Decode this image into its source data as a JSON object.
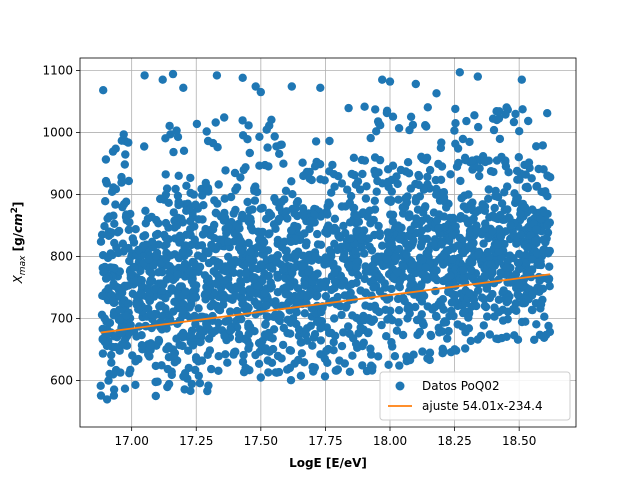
{
  "chart_data": {
    "type": "scatter",
    "title": "",
    "xlabel": "LogE [E/eV]",
    "ylabel": "X_max [g/cm^2]",
    "ylabel_parts": {
      "base": "X",
      "sub": "max",
      "unit_pre": " [g/",
      "unit_italic": "cm",
      "unit_sup": "2",
      "unit_post": "]"
    },
    "xlim": [
      16.8,
      18.72
    ],
    "ylim": [
      525,
      1120
    ],
    "xticks": [
      17.0,
      17.25,
      17.5,
      17.75,
      18.0,
      18.25,
      18.5
    ],
    "xtick_labels": [
      "17.00",
      "17.25",
      "17.50",
      "17.75",
      "18.00",
      "18.25",
      "18.50"
    ],
    "yticks": [
      600,
      700,
      800,
      900,
      1000,
      1100
    ],
    "ytick_labels": [
      "600",
      "700",
      "800",
      "900",
      "1000",
      "1100"
    ],
    "grid": true,
    "legend_position": "lower-right",
    "series": [
      {
        "name": "Datos PoQ02",
        "kind": "scatter",
        "color": "#1f77b4",
        "x_range": [
          16.88,
          18.62
        ],
        "y_band_low": [
          [
            16.88,
            555
          ],
          [
            17.5,
            580
          ],
          [
            18.0,
            610
          ],
          [
            18.62,
            660
          ]
        ],
        "y_band_high": [
          [
            16.88,
            935
          ],
          [
            17.5,
            960
          ],
          [
            18.0,
            975
          ],
          [
            18.62,
            970
          ]
        ],
        "outliers": [
          [
            16.89,
            1068
          ],
          [
            17.05,
            1092
          ],
          [
            17.16,
            1094
          ],
          [
            17.12,
            1085
          ],
          [
            17.33,
            1092
          ],
          [
            17.43,
            1088
          ],
          [
            17.48,
            1074
          ],
          [
            17.62,
            1074
          ],
          [
            17.73,
            1072
          ],
          [
            17.97,
            1085
          ],
          [
            18.0,
            1082
          ],
          [
            18.1,
            1078
          ],
          [
            18.18,
            1063
          ],
          [
            18.27,
            1097
          ],
          [
            18.34,
            1090
          ],
          [
            18.51,
            1085
          ],
          [
            17.2,
            1072
          ],
          [
            17.5,
            1065
          ]
        ]
      },
      {
        "name": "ajuste 54.01x-234.4",
        "kind": "line",
        "color": "#ff7f0e",
        "x": [
          16.88,
          18.62
        ],
        "y": [
          677.3,
          771.3
        ]
      }
    ]
  }
}
